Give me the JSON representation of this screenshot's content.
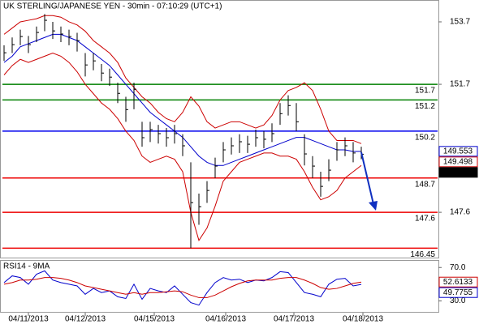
{
  "chart_data": [
    {
      "type": "hlc",
      "title": "UK STERLING/JAPANESE YEN - 30min - 07:10:29 (UTC+1)",
      "x": [
        0,
        1,
        2,
        3,
        4,
        5,
        6,
        7,
        8,
        9,
        10,
        11,
        12,
        13,
        14,
        15,
        16,
        17,
        18,
        19,
        20,
        21,
        22,
        23,
        24,
        25,
        26,
        27,
        28,
        29,
        30,
        31,
        32,
        33,
        34,
        35,
        36,
        37,
        38,
        39,
        40,
        41,
        42,
        43,
        44
      ],
      "high": [
        152.95,
        153.2,
        153.45,
        153.25,
        153.55,
        153.95,
        153.7,
        153.55,
        153.45,
        153.35,
        152.7,
        152.7,
        152.35,
        152.2,
        151.75,
        151.3,
        151.75,
        150.5,
        150.5,
        150.4,
        150.3,
        150.4,
        150.1,
        149.2,
        148.2,
        148.6,
        149.35,
        149.85,
        150.0,
        150.1,
        150.05,
        150.25,
        150.2,
        150.45,
        151.1,
        151.35,
        151.1,
        150.1,
        149.4,
        148.9,
        149.3,
        149.85,
        150.0,
        149.85,
        149.7
      ],
      "low": [
        152.45,
        152.7,
        152.95,
        152.7,
        153.05,
        153.4,
        153.15,
        153.05,
        152.95,
        152.75,
        151.95,
        152.15,
        151.8,
        151.65,
        151.1,
        150.5,
        150.9,
        149.7,
        149.85,
        149.8,
        149.7,
        149.8,
        149.4,
        146.45,
        147.2,
        147.9,
        148.7,
        149.2,
        149.45,
        149.5,
        149.5,
        149.7,
        149.65,
        149.85,
        150.4,
        150.7,
        150.2,
        149.1,
        148.7,
        148.1,
        148.6,
        149.25,
        149.4,
        149.2,
        149.3
      ],
      "close": [
        152.71,
        152.97,
        153.23,
        152.97,
        153.36,
        153.75,
        153.41,
        153.31,
        153.23,
        153.1,
        152.32,
        152.45,
        152.06,
        151.93,
        151.41,
        150.89,
        151.54,
        149.99,
        150.25,
        150.12,
        149.99,
        150.12,
        149.73,
        147.91,
        147.78,
        148.3,
        149.08,
        149.6,
        149.73,
        149.86,
        149.78,
        149.99,
        149.94,
        150.12,
        150.76,
        151.02,
        150.5,
        149.47,
        149.08,
        148.43,
        148.95,
        149.6,
        149.73,
        149.5,
        149.46
      ],
      "lines": [
        {
          "color": "#cc0000",
          "values": [
            153.3,
            153.5,
            153.7,
            153.75,
            153.8,
            153.9,
            153.9,
            153.85,
            153.7,
            153.6,
            153.4,
            153.1,
            152.9,
            152.7,
            152.4,
            151.9,
            151.6,
            151.3,
            151.1,
            150.8,
            150.6,
            150.5,
            150.8,
            151.3,
            151.0,
            150.5,
            150.3,
            150.4,
            150.5,
            150.5,
            150.4,
            150.3,
            150.4,
            150.7,
            151.2,
            151.5,
            151.6,
            151.75,
            151.5,
            150.9,
            150.2,
            149.9,
            149.9,
            149.9,
            149.8
          ]
        },
        {
          "color": "#cc0000",
          "values": [
            152.0,
            152.3,
            152.5,
            152.4,
            152.5,
            152.6,
            152.7,
            152.6,
            152.4,
            152.1,
            151.7,
            151.4,
            151.1,
            150.9,
            150.6,
            150.2,
            149.9,
            149.4,
            149.2,
            149.3,
            149.4,
            149.3,
            148.9,
            147.6,
            146.7,
            147.1,
            147.8,
            148.6,
            148.9,
            149.2,
            149.3,
            149.4,
            149.5,
            149.5,
            149.4,
            149.4,
            149.3,
            148.9,
            148.4,
            148.0,
            148.1,
            148.3,
            148.7,
            148.9,
            149.1
          ]
        },
        {
          "color": "#0000cc",
          "values": [
            152.4,
            152.6,
            152.9,
            153.0,
            153.1,
            153.2,
            153.3,
            153.3,
            153.2,
            153.1,
            152.9,
            152.7,
            152.5,
            152.3,
            152.0,
            151.7,
            151.4,
            151.1,
            150.8,
            150.6,
            150.4,
            150.2,
            150.0,
            149.7,
            149.4,
            149.2,
            149.1,
            149.1,
            149.2,
            149.3,
            149.4,
            149.5,
            149.6,
            149.7,
            149.8,
            149.9,
            150.0,
            150.0,
            149.9,
            149.8,
            149.7,
            149.6,
            149.6,
            149.55,
            149.553
          ]
        }
      ],
      "levels": [
        {
          "value": 151.7,
          "color": "#008000"
        },
        {
          "value": 151.2,
          "color": "#008000"
        },
        {
          "value": 150.2,
          "color": "#0000ee"
        },
        {
          "value": 148.7,
          "color": "#ee0000"
        },
        {
          "value": 147.6,
          "color": "#ee0000"
        },
        {
          "value": 146.45,
          "color": "#ee0000"
        }
      ],
      "markers": [
        {
          "value": 149.553,
          "color": "#0000cc",
          "filled": false
        },
        {
          "value": 149.498,
          "color": "#cc0000",
          "filled": false
        },
        {
          "value": 149.46,
          "color": "#000000",
          "filled": true
        }
      ],
      "xlim": [
        -0.5,
        53.5
      ],
      "ylim": [
        146.15,
        154.4
      ],
      "yticks": [
        153.7,
        151.7,
        147.6
      ]
    },
    {
      "type": "line",
      "title": "RSI14 - 9MA",
      "x": [
        0,
        1,
        2,
        3,
        4,
        5,
        6,
        7,
        8,
        9,
        10,
        11,
        12,
        13,
        14,
        15,
        16,
        17,
        18,
        19,
        20,
        21,
        22,
        23,
        24,
        25,
        26,
        27,
        28,
        29,
        30,
        31,
        32,
        33,
        34,
        35,
        36,
        37,
        38,
        39,
        40,
        41,
        42,
        43,
        44
      ],
      "series": [
        {
          "color": "#0000cc",
          "values": [
            52,
            60,
            58,
            50,
            62,
            66,
            55,
            52,
            50,
            48,
            38,
            45,
            40,
            42,
            35,
            33,
            50,
            32,
            45,
            42,
            40,
            48,
            38,
            28,
            25,
            40,
            52,
            58,
            55,
            56,
            52,
            55,
            54,
            58,
            65,
            64,
            52,
            40,
            38,
            35,
            50,
            56,
            57,
            48,
            49.7755
          ]
        },
        {
          "color": "#cc0000",
          "values": [
            50,
            52,
            55,
            55,
            56,
            58,
            58,
            57,
            55,
            52,
            48,
            46,
            44,
            42,
            40,
            38,
            40,
            38,
            40,
            40,
            41,
            42,
            41,
            37,
            34,
            34,
            37,
            42,
            47,
            51,
            54,
            55,
            55,
            55,
            57,
            58,
            58,
            55,
            51,
            46,
            44,
            45,
            48,
            51,
            52.6133
          ]
        }
      ],
      "markers": [
        {
          "value": 52.6133,
          "color": "#cc0000",
          "filled": false
        },
        {
          "value": 49.7755,
          "color": "#0000cc",
          "filled": false
        }
      ],
      "xlim": [
        -0.5,
        53.5
      ],
      "ylim": [
        16,
        78
      ],
      "yticks": [
        {
          "value": 70,
          "label": "70.0"
        },
        {
          "value": 30,
          "label": "30.0"
        }
      ],
      "xticks": [
        {
          "value": 3,
          "label": "04/11/2013"
        },
        {
          "value": 10,
          "label": "04/12/2013"
        },
        {
          "value": 18.5,
          "label": "04/15/2013"
        },
        {
          "value": 27.3,
          "label": "04/16/2013"
        },
        {
          "value": 35.7,
          "label": "04/17/2013"
        },
        {
          "value": 44.2,
          "label": "04/18/2013"
        }
      ]
    }
  ]
}
